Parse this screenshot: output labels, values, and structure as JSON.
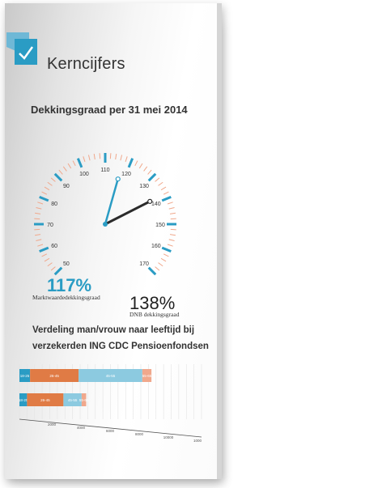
{
  "brand": {
    "name": "Kerncijfers"
  },
  "section_title": "Dekkingsgraad per 31 mei 2014",
  "gauge": {
    "tick_labels": [
      "50",
      "60",
      "70",
      "80",
      "90",
      "100",
      "110",
      "120",
      "130",
      "140",
      "150",
      "160",
      "170"
    ],
    "min": 50,
    "max": 170,
    "market_value": 117,
    "dnb_value": 138,
    "colors": {
      "accent": "#2a9cc4",
      "needle_dark": "#2b2b2b",
      "tick_minor": "#f0a88c"
    }
  },
  "metrics": {
    "left_value": "117%",
    "left_label": "Marktwaardedekkingsgraad",
    "right_value": "138%",
    "right_label": "DNB dekkingsgraad"
  },
  "distribution": {
    "title_line1": "Verdeling man/vrouw naar leeftijd bij",
    "title_line2": "verzekerden ING CDC Pensioenfondsen"
  },
  "chart_data": {
    "type": "bar",
    "stacked": true,
    "orientation": "horizontal",
    "categories": [
      "row-1",
      "row-2"
    ],
    "series": [
      {
        "name": "18-25",
        "values": [
          700,
          500
        ],
        "color": "#2a9cc4"
      },
      {
        "name": "26-45",
        "values": [
          3200,
          2400
        ],
        "color": "#e07b45"
      },
      {
        "name": "45-55",
        "values": [
          4200,
          1200
        ],
        "color": "#8ccae0"
      },
      {
        "name": "55-65",
        "values": [
          600,
          300
        ],
        "color": "#f0a88c"
      }
    ],
    "x_ticks": [
      "2000",
      "4000",
      "6000",
      "8000",
      "10000",
      "1000"
    ],
    "xlim": [
      0,
      12000
    ],
    "grid": true
  }
}
